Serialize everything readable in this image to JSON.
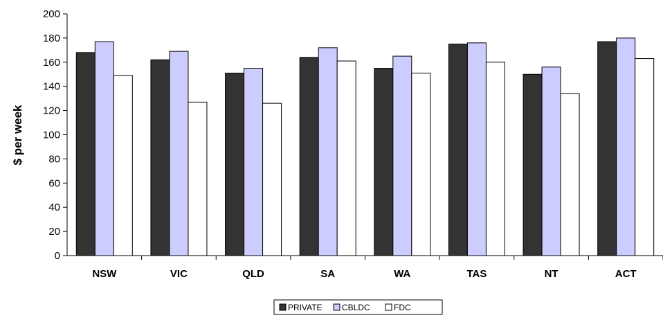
{
  "chart_data": {
    "type": "bar",
    "categories": [
      "NSW",
      "VIC",
      "QLD",
      "SA",
      "WA",
      "TAS",
      "NT",
      "ACT"
    ],
    "series": [
      {
        "name": "PRIVATE",
        "color": "#333333",
        "values": [
          168,
          162,
          151,
          164,
          155,
          175,
          150,
          177
        ]
      },
      {
        "name": "CBLDC",
        "color": "#ccccff",
        "values": [
          177,
          169,
          155,
          172,
          165,
          176,
          156,
          180
        ]
      },
      {
        "name": "FDC",
        "color": "#ffffff",
        "values": [
          149,
          127,
          126,
          161,
          151,
          160,
          134,
          163
        ]
      }
    ],
    "ylabel": "$ per week",
    "ylim": [
      0,
      200
    ],
    "yticks": [
      0,
      20,
      40,
      60,
      80,
      100,
      120,
      140,
      160,
      180,
      200
    ],
    "grid": false,
    "legend_position": "bottom"
  }
}
